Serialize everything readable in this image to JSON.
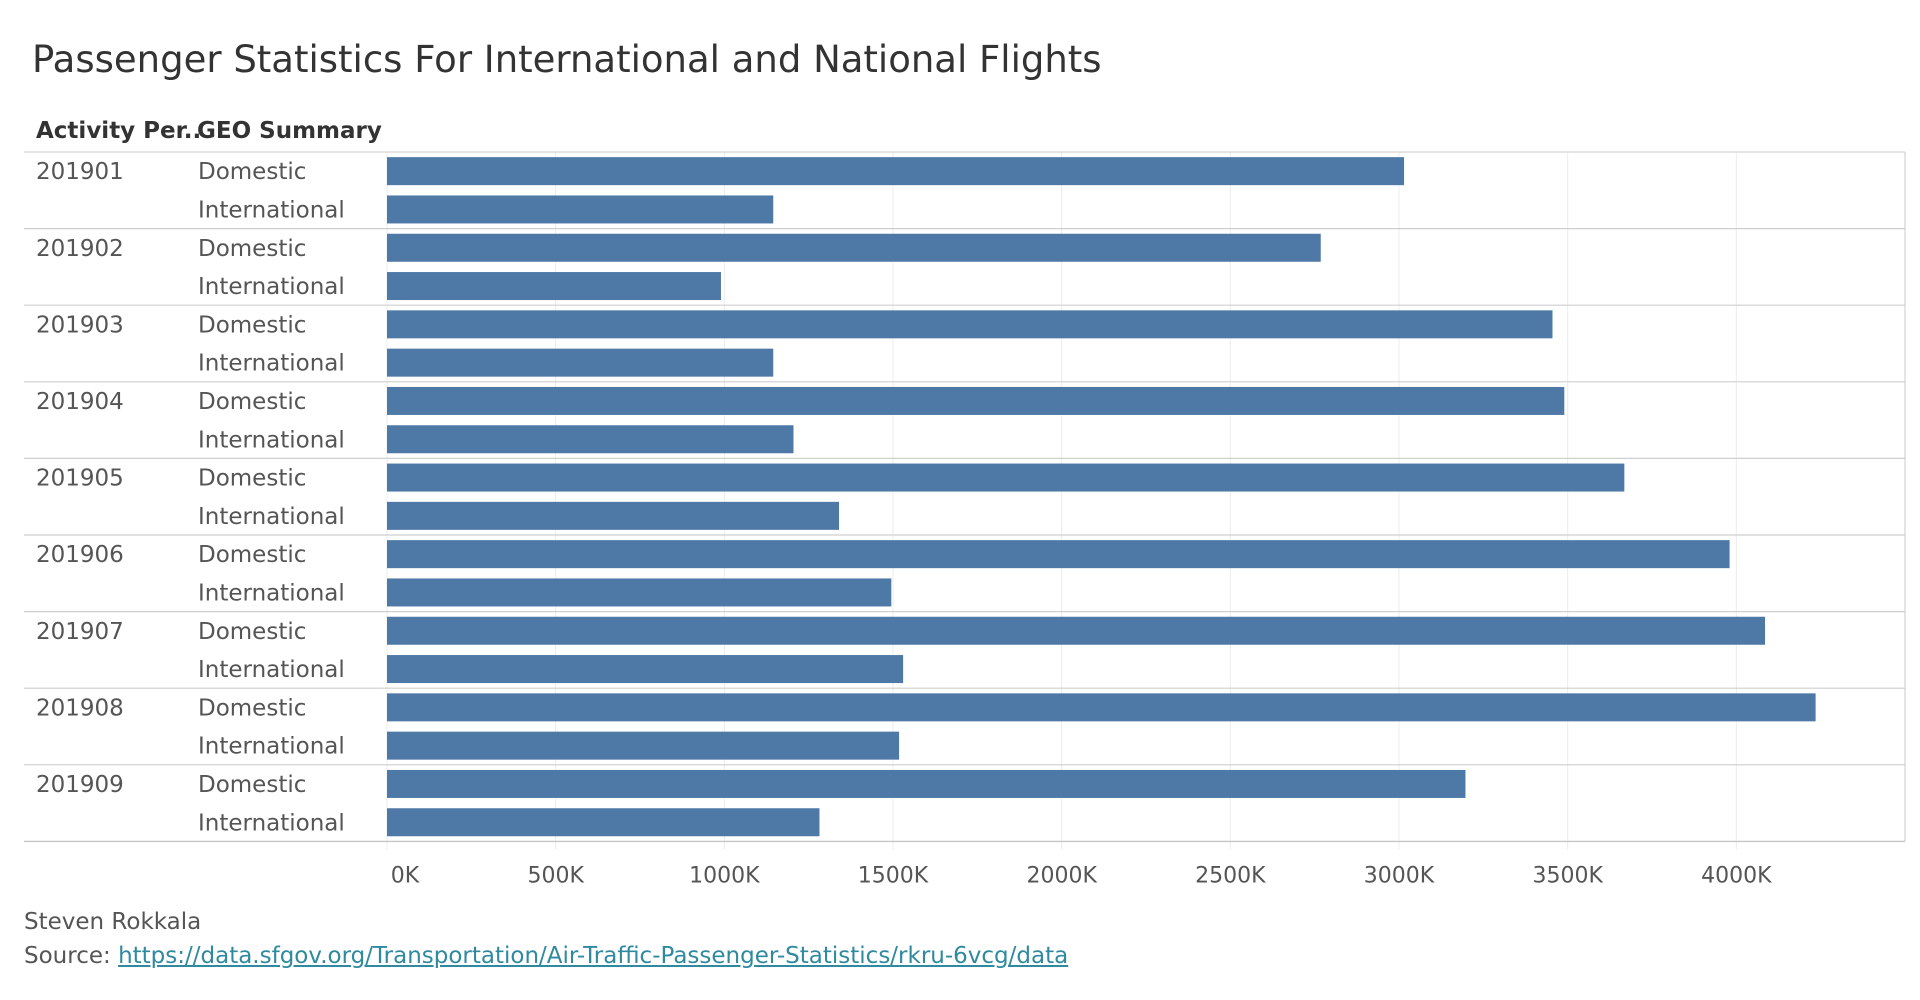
{
  "chart_data": {
    "type": "bar",
    "orientation": "horizontal",
    "title": "Passenger Statistics For International and National Flights",
    "row_headers": [
      "Activity Per..",
      "GEO Summary"
    ],
    "groups": [
      "201901",
      "201902",
      "201903",
      "201904",
      "201905",
      "201906",
      "201907",
      "201908",
      "201909"
    ],
    "categories": [
      "Domestic",
      "International"
    ],
    "values": [
      [
        3015000,
        1145000
      ],
      [
        2768000,
        990000
      ],
      [
        3455000,
        1145000
      ],
      [
        3490000,
        1205000
      ],
      [
        3668000,
        1340000
      ],
      [
        3980000,
        1495000
      ],
      [
        4085000,
        1530000
      ],
      [
        4235000,
        1518000
      ],
      [
        3197000,
        1282000
      ]
    ],
    "xlim": [
      0,
      4500000
    ],
    "x_ticks": [
      0,
      500000,
      1000000,
      1500000,
      2000000,
      2500000,
      3000000,
      3500000,
      4000000
    ],
    "x_tick_labels": [
      "0K",
      "500K",
      "1000K",
      "1500K",
      "2000K",
      "2500K",
      "3000K",
      "3500K",
      "4000K"
    ],
    "grid": true,
    "bar_color": "#4e79a7"
  },
  "footer": {
    "author": "Steven Rokkala",
    "source_label": "Source: ",
    "source_url": "https://data.sfgov.org/Transportation/Air-Traffic-Passenger-Statistics/rkru-6vcg/data"
  }
}
